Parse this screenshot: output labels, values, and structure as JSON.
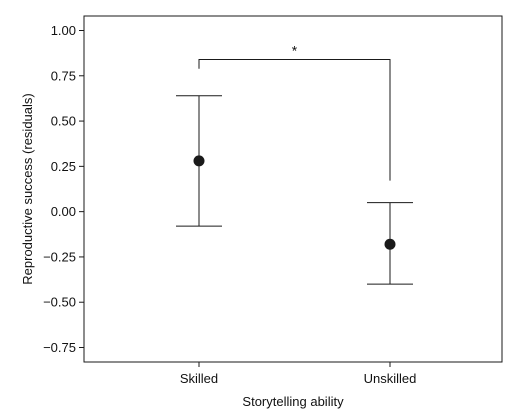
{
  "chart_data": {
    "type": "scatter",
    "title": "",
    "xlabel": "Storytelling ability",
    "ylabel": "Reproductive success (residuals)",
    "categories": [
      "Skilled",
      "Unskilled"
    ],
    "series": [
      {
        "values": [
          0.28,
          -0.18
        ],
        "error_low": [
          -0.08,
          -0.4
        ],
        "error_high": [
          0.64,
          0.05
        ]
      }
    ],
    "yticks": [
      1.0,
      0.75,
      0.5,
      0.25,
      0.0,
      -0.25,
      -0.5,
      -0.75
    ],
    "ytick_labels": [
      "1.00",
      "0.75",
      "0.50",
      "0.25",
      "0.00",
      "−0.25",
      "−0.50",
      "−0.75"
    ],
    "ylim": [
      -0.83,
      1.08
    ],
    "grid": false,
    "legend": "none",
    "annotations": [
      {
        "text": "*",
        "between": [
          "Skilled",
          "Unskilled"
        ],
        "bracket_level": 0.84
      }
    ],
    "colors": {
      "marker": "#1a1a1a",
      "line": "#1a1a1a",
      "frame": "#1a1a1a"
    }
  }
}
